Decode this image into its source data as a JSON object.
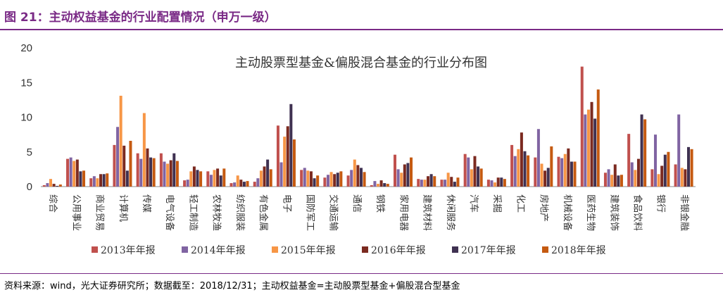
{
  "figure": {
    "title": "图 21：主动权益基金的行业配置情况（申万一级）",
    "source": "资料来源：wind，光大证券研究所；数据截至：2018/12/31；主动权益基金=主动股票型基金+偏股混合型基金"
  },
  "chart_data": {
    "type": "bar",
    "title": "主动股票型基金&偏股混合基金的行业分布图",
    "xlabel": "",
    "ylabel": "",
    "ylim": [
      0,
      20
    ],
    "yticks": [
      0,
      5,
      10,
      15,
      20
    ],
    "grid": false,
    "legend_position": "bottom",
    "categories": [
      "综合",
      "公用事业",
      "商业贸易",
      "计算机",
      "传媒",
      "电气设备",
      "轻工制造",
      "农林牧渔",
      "纺织服装",
      "有色金属",
      "电子",
      "国防军工",
      "交通运输",
      "通信",
      "钢铁",
      "家用电器",
      "建筑材料",
      "休闲服务",
      "汽车",
      "采掘",
      "化工",
      "房地产",
      "机械设备",
      "医药生物",
      "建筑装饰",
      "食品饮料",
      "银行",
      "非银金融"
    ],
    "series": [
      {
        "name": "2013年年报",
        "color": "#c0504d",
        "values": [
          0.2,
          4.0,
          1.2,
          6.0,
          4.8,
          4.8,
          0.9,
          2.2,
          0.5,
          0.7,
          8.8,
          2.4,
          1.3,
          1.6,
          0.2,
          4.6,
          1.1,
          1.0,
          4.7,
          1.0,
          6.0,
          4.2,
          4.3,
          17.3,
          2.0,
          7.6,
          2.5,
          3.2
        ]
      },
      {
        "name": "2014年年报",
        "color": "#8064a2",
        "values": [
          0.5,
          4.2,
          1.5,
          8.6,
          4.0,
          3.6,
          1.0,
          1.7,
          0.6,
          1.2,
          3.5,
          2.7,
          1.7,
          2.4,
          0.8,
          2.5,
          1.0,
          1.0,
          4.2,
          0.9,
          4.4,
          8.3,
          4.1,
          10.4,
          2.5,
          3.5,
          7.5,
          10.4
        ]
      },
      {
        "name": "2015年年报",
        "color": "#f79646",
        "values": [
          1.1,
          3.7,
          1.2,
          13.1,
          10.6,
          3.3,
          2.2,
          2.4,
          1.6,
          2.3,
          7.2,
          2.3,
          2.1,
          3.9,
          0.4,
          2.0,
          1.0,
          2.0,
          2.5,
          0.6,
          5.4,
          3.3,
          4.7,
          11.1,
          1.7,
          2.4,
          1.8,
          2.7
        ]
      },
      {
        "name": "2016年年报",
        "color": "#7b2a20",
        "values": [
          0.4,
          3.9,
          1.8,
          5.9,
          5.5,
          3.8,
          2.9,
          2.6,
          1.0,
          2.9,
          8.7,
          2.2,
          1.8,
          3.1,
          0.9,
          3.2,
          1.5,
          1.4,
          4.4,
          1.3,
          7.8,
          2.3,
          5.5,
          12.2,
          3.2,
          4.0,
          3.0,
          2.5
        ]
      },
      {
        "name": "2017年年报",
        "color": "#3f3151",
        "values": [
          0.1,
          2.2,
          1.8,
          2.3,
          4.2,
          4.8,
          2.4,
          1.6,
          0.7,
          3.9,
          11.9,
          1.2,
          2.0,
          2.7,
          0.5,
          3.4,
          1.8,
          0.7,
          2.9,
          1.3,
          5.1,
          2.7,
          3.6,
          9.8,
          1.6,
          10.4,
          4.6,
          5.7
        ]
      },
      {
        "name": "2018年年报",
        "color": "#c55a11",
        "values": [
          0.3,
          2.3,
          1.9,
          6.6,
          4.1,
          3.7,
          2.2,
          2.6,
          0.8,
          2.5,
          6.8,
          1.6,
          2.2,
          2.1,
          0.4,
          4.2,
          1.5,
          1.3,
          2.6,
          1.1,
          4.5,
          5.8,
          3.6,
          14.0,
          1.7,
          9.7,
          5.0,
          5.4
        ]
      }
    ]
  }
}
